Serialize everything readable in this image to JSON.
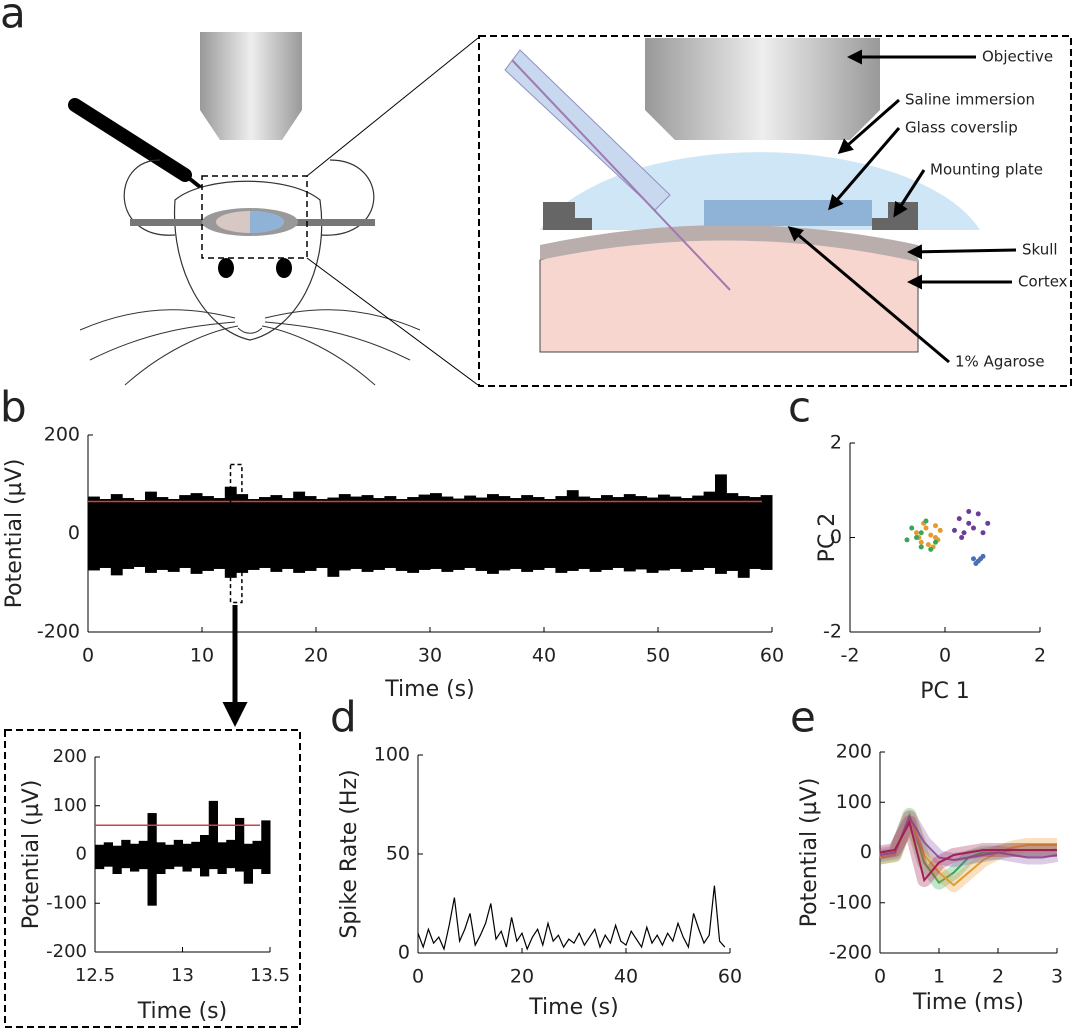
{
  "diagram": {
    "label": "a",
    "callouts": [
      "Objective",
      "Saline immersion",
      "Glass coverslip",
      "Mounting plate",
      "Skull",
      "Cortex",
      "1% Agarose"
    ]
  },
  "chart_data": [
    {
      "type": "trace",
      "label": "b",
      "xlabel": "Time (s)",
      "ylabel": "Potential (µV)",
      "xlim": [
        0,
        60
      ],
      "xticks": [
        0,
        10,
        20,
        30,
        40,
        50,
        60
      ],
      "ylim": [
        -200,
        200
      ],
      "yticks": [
        -200,
        0,
        200
      ],
      "color": "#000000",
      "threshold": 65,
      "threshold_color": "#d04040",
      "zoom_box": {
        "xlim": [
          12.5,
          13.5
        ],
        "ylim": [
          -140,
          140
        ]
      },
      "x": [
        0,
        1,
        2,
        3,
        4,
        5,
        6,
        7,
        8,
        9,
        10,
        11,
        12,
        13,
        14,
        15,
        16,
        17,
        18,
        19,
        20,
        21,
        22,
        23,
        24,
        25,
        26,
        27,
        28,
        29,
        30,
        31,
        32,
        33,
        34,
        35,
        36,
        37,
        38,
        39,
        40,
        41,
        42,
        43,
        44,
        45,
        46,
        47,
        48,
        49,
        50,
        51,
        52,
        53,
        54,
        55,
        56,
        57,
        58,
        59
      ],
      "upper": [
        75,
        70,
        80,
        72,
        68,
        85,
        74,
        70,
        78,
        82,
        76,
        72,
        95,
        80,
        70,
        74,
        78,
        72,
        85,
        76,
        70,
        73,
        80,
        75,
        78,
        72,
        76,
        70,
        74,
        79,
        82,
        75,
        71,
        77,
        73,
        80,
        76,
        72,
        78,
        74,
        70,
        76,
        88,
        75,
        72,
        78,
        74,
        80,
        76,
        73,
        79,
        75,
        72,
        77,
        85,
        120,
        82,
        76,
        74,
        78
      ],
      "lower": [
        -75,
        -70,
        -85,
        -72,
        -68,
        -80,
        -74,
        -78,
        -70,
        -82,
        -76,
        -72,
        -90,
        -80,
        -74,
        -70,
        -78,
        -72,
        -80,
        -76,
        -70,
        -88,
        -75,
        -72,
        -78,
        -74,
        -70,
        -76,
        -80,
        -74,
        -72,
        -78,
        -74,
        -70,
        -76,
        -82,
        -75,
        -72,
        -78,
        -74,
        -70,
        -80,
        -76,
        -72,
        -78,
        -74,
        -70,
        -77,
        -73,
        -80,
        -75,
        -72,
        -78,
        -74,
        -70,
        -82,
        -76,
        -90,
        -72,
        -74
      ]
    },
    {
      "type": "trace",
      "xlabel": "Time (s)",
      "ylabel": "Potential (µV)",
      "xlim": [
        12.5,
        13.5
      ],
      "xticks": [
        12.5,
        13,
        13.5
      ],
      "ylim": [
        -200,
        200
      ],
      "yticks": [
        -200,
        -100,
        0,
        100,
        200
      ],
      "color": "#000000",
      "threshold": 60,
      "threshold_color": "#d04040",
      "x": [
        12.5,
        12.55,
        12.6,
        12.65,
        12.7,
        12.75,
        12.8,
        12.85,
        12.9,
        12.95,
        13,
        13.05,
        13.1,
        13.15,
        13.2,
        13.25,
        13.3,
        13.35,
        13.4,
        13.45
      ],
      "upper": [
        20,
        25,
        18,
        30,
        22,
        28,
        85,
        25,
        20,
        30,
        22,
        26,
        40,
        110,
        25,
        30,
        75,
        22,
        28,
        70
      ],
      "lower": [
        -30,
        -25,
        -40,
        -28,
        -35,
        -30,
        -105,
        -40,
        -30,
        -25,
        -35,
        -28,
        -45,
        -30,
        -40,
        -28,
        -35,
        -60,
        -30,
        -40
      ]
    },
    {
      "type": "scatter",
      "label": "c",
      "xlabel": "PC 1",
      "ylabel": "PC 2",
      "xlim": [
        -2,
        2
      ],
      "xticks": [
        -2,
        0,
        2
      ],
      "ylim": [
        -2,
        2
      ],
      "yticks": [
        -2,
        0,
        2
      ],
      "series": [
        {
          "color": "#e39b2e",
          "x": [
            -0.6,
            -0.4,
            -0.2,
            -0.5,
            -0.3,
            -0.1,
            -0.45,
            -0.25,
            -0.15,
            -0.35,
            -0.55,
            -0.2
          ],
          "values": [
            0.1,
            0.2,
            0.0,
            -0.1,
            0.05,
            0.15,
            0.3,
            -0.2,
            -0.05,
            -0.15,
            0.0,
            0.25
          ]
        },
        {
          "color": "#3aa55a",
          "x": [
            -0.7,
            -0.5,
            -0.3,
            -0.6,
            -0.4,
            -0.2,
            -0.5,
            -0.8
          ],
          "values": [
            0.2,
            -0.2,
            -0.25,
            0.0,
            0.35,
            -0.1,
            0.1,
            -0.05
          ]
        },
        {
          "color": "#6a3d9a",
          "x": [
            0.3,
            0.5,
            0.7,
            0.4,
            0.6,
            0.9,
            0.2,
            0.5,
            0.8,
            0.35
          ],
          "values": [
            0.4,
            0.3,
            0.5,
            0.1,
            0.2,
            0.3,
            0.15,
            0.55,
            0.1,
            0.0
          ]
        },
        {
          "color": "#4a6fb5",
          "x": [
            0.6,
            0.7,
            0.8,
            0.65,
            0.75
          ],
          "values": [
            -0.45,
            -0.5,
            -0.4,
            -0.55,
            -0.45
          ]
        }
      ]
    },
    {
      "type": "line",
      "label": "d",
      "xlabel": "Time (s)",
      "ylabel": "Spike Rate (Hz)",
      "xlim": [
        0,
        60
      ],
      "xticks": [
        0,
        20,
        40,
        60
      ],
      "ylim": [
        0,
        100
      ],
      "yticks": [
        0,
        50,
        100
      ],
      "series": [
        {
          "color": "#000000",
          "x": [
            0,
            1,
            2,
            3,
            4,
            5,
            6,
            7,
            8,
            9,
            10,
            11,
            12,
            13,
            14,
            15,
            16,
            17,
            18,
            19,
            20,
            21,
            22,
            23,
            24,
            25,
            26,
            27,
            28,
            29,
            30,
            31,
            32,
            33,
            34,
            35,
            36,
            37,
            38,
            39,
            40,
            41,
            42,
            43,
            44,
            45,
            46,
            47,
            48,
            49,
            50,
            51,
            52,
            53,
            54,
            55,
            56,
            57,
            58,
            59
          ],
          "values": [
            10,
            3,
            12,
            5,
            8,
            2,
            14,
            28,
            6,
            12,
            20,
            4,
            9,
            15,
            25,
            7,
            11,
            3,
            18,
            6,
            10,
            2,
            8,
            12,
            4,
            15,
            6,
            9,
            3,
            7,
            5,
            10,
            4,
            8,
            12,
            3,
            9,
            5,
            14,
            6,
            4,
            11,
            7,
            3,
            13,
            5,
            9,
            4,
            10,
            6,
            15,
            8,
            3,
            20,
            12,
            5,
            9,
            34,
            6,
            3
          ]
        }
      ]
    },
    {
      "type": "line",
      "label": "e",
      "xlabel": "Time (ms)",
      "ylabel": "Potential (µV)",
      "xlim": [
        0,
        3
      ],
      "xticks": [
        0,
        1,
        2,
        3
      ],
      "ylim": [
        -200,
        200
      ],
      "yticks": [
        -200,
        -100,
        0,
        100,
        200
      ],
      "series": [
        {
          "color": "#3aa55a",
          "x": [
            0,
            0.25,
            0.5,
            0.75,
            1,
            1.25,
            1.5,
            1.75,
            2,
            2.25,
            2.5,
            2.75,
            3
          ],
          "values": [
            -10,
            -5,
            75,
            -20,
            -60,
            -40,
            -10,
            0,
            0,
            5,
            5,
            5,
            5
          ]
        },
        {
          "color": "#e39b2e",
          "x": [
            0,
            0.25,
            0.5,
            0.75,
            1,
            1.25,
            1.5,
            1.75,
            2,
            2.25,
            2.5,
            2.75,
            3
          ],
          "values": [
            -10,
            -5,
            70,
            -5,
            -40,
            -65,
            -40,
            -15,
            0,
            10,
            15,
            15,
            15
          ]
        },
        {
          "color": "#8a5aa8",
          "x": [
            0,
            0.25,
            0.5,
            0.75,
            1,
            1.25,
            1.5,
            1.75,
            2,
            2.25,
            2.5,
            2.75,
            3
          ],
          "values": [
            -5,
            0,
            70,
            20,
            -10,
            -15,
            -10,
            -5,
            0,
            -5,
            -10,
            -10,
            -5
          ]
        },
        {
          "color": "#a02050",
          "x": [
            0,
            0.25,
            0.5,
            0.75,
            1,
            1.25,
            1.5,
            1.75,
            2,
            2.25,
            2.5,
            2.75,
            3
          ],
          "values": [
            0,
            5,
            60,
            -55,
            -20,
            -5,
            0,
            5,
            5,
            5,
            5,
            5,
            5
          ]
        }
      ]
    }
  ]
}
